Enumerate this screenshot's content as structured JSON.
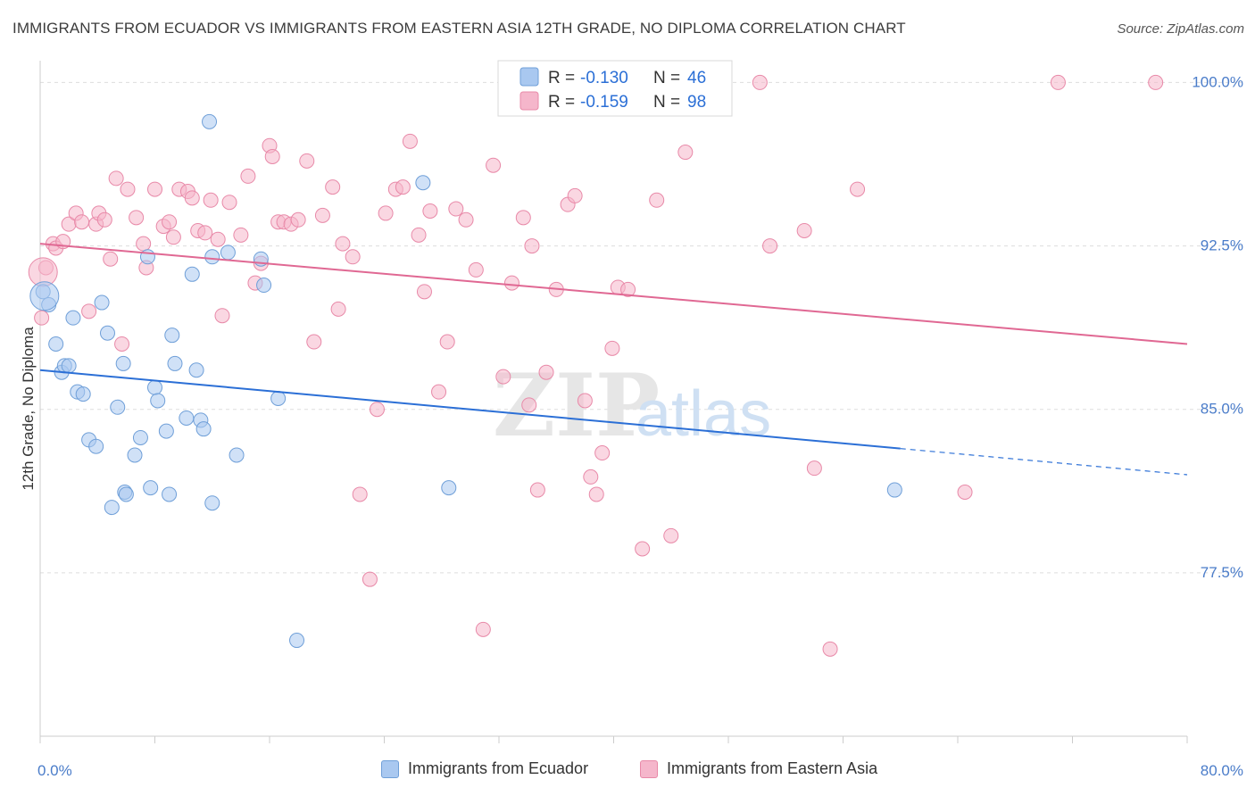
{
  "title": "IMMIGRANTS FROM ECUADOR VS IMMIGRANTS FROM EASTERN ASIA 12TH GRADE, NO DIPLOMA CORRELATION CHART",
  "source": "Source: ZipAtlas.com",
  "watermark": {
    "zip": "ZIP",
    "atlas": "atlas"
  },
  "legend_top": [
    {
      "r_label": "R =",
      "r_value": "-0.130",
      "n_label": "N =",
      "n_value": "46"
    },
    {
      "r_label": "R =",
      "r_value": "-0.159",
      "n_label": "N =",
      "n_value": "98"
    }
  ],
  "legend_bottom": [
    {
      "label": "Immigrants from Ecuador"
    },
    {
      "label": "Immigrants from Eastern Asia"
    }
  ],
  "colors": {
    "blue_fill": "#a9c8f0",
    "blue_stroke": "#6f9fd8",
    "blue_line": "#2b6fd6",
    "pink_fill": "#f5b6cb",
    "pink_stroke": "#e889a8",
    "pink_line": "#e06893",
    "tick_label": "#4a7cc9",
    "grid": "#dddddd"
  },
  "chart_data": {
    "type": "scatter",
    "title": "IMMIGRANTS FROM ECUADOR VS IMMIGRANTS FROM EASTERN ASIA 12TH GRADE, NO DIPLOMA CORRELATION CHART",
    "xlabel": "",
    "ylabel": "12th Grade, No Diploma",
    "xlim": [
      0,
      80
    ],
    "ylim": [
      70.0,
      101.0
    ],
    "x_tick_labels": [
      "0.0%",
      "80.0%"
    ],
    "y_ticks": [
      77.5,
      85.0,
      92.5,
      100.0
    ],
    "y_tick_labels": [
      "77.5%",
      "85.0%",
      "92.5%",
      "100.0%"
    ],
    "grid": true,
    "legend_position": "top-center",
    "series": [
      {
        "name": "Immigrants from Ecuador",
        "color": "#a9c8f0",
        "trend": {
          "x": [
            0,
            60
          ],
          "y": [
            86.8,
            83.2
          ],
          "dashed_to": [
            80,
            82.0
          ]
        },
        "points": [
          [
            0.2,
            90.4
          ],
          [
            0.6,
            89.8
          ],
          [
            1.1,
            88.0
          ],
          [
            1.5,
            86.7
          ],
          [
            1.7,
            87.0
          ],
          [
            2.0,
            87.0
          ],
          [
            2.3,
            89.2
          ],
          [
            2.6,
            85.8
          ],
          [
            3.0,
            85.7
          ],
          [
            3.4,
            83.6
          ],
          [
            3.9,
            83.3
          ],
          [
            4.3,
            89.9
          ],
          [
            4.7,
            88.5
          ],
          [
            5.0,
            80.5
          ],
          [
            5.4,
            85.1
          ],
          [
            5.9,
            81.2
          ],
          [
            6.0,
            81.1
          ],
          [
            6.6,
            82.9
          ],
          [
            5.8,
            87.1
          ],
          [
            7.0,
            83.7
          ],
          [
            7.5,
            92.0
          ],
          [
            7.7,
            81.4
          ],
          [
            8.0,
            86.0
          ],
          [
            8.2,
            85.4
          ],
          [
            8.8,
            84.0
          ],
          [
            9.2,
            88.4
          ],
          [
            9.4,
            87.1
          ],
          [
            9.0,
            81.1
          ],
          [
            10.2,
            84.6
          ],
          [
            10.6,
            91.2
          ],
          [
            10.9,
            86.8
          ],
          [
            11.2,
            84.5
          ],
          [
            11.4,
            84.1
          ],
          [
            11.8,
            98.2
          ],
          [
            12.0,
            92.0
          ],
          [
            12.0,
            80.7
          ],
          [
            13.1,
            92.2
          ],
          [
            13.7,
            82.9
          ],
          [
            15.4,
            91.9
          ],
          [
            15.6,
            90.7
          ],
          [
            16.6,
            85.5
          ],
          [
            17.9,
            74.4
          ],
          [
            26.7,
            95.4
          ],
          [
            28.5,
            81.4
          ],
          [
            59.6,
            81.3
          ],
          [
            0.3,
            90.2
          ]
        ]
      },
      {
        "name": "Immigrants from Eastern Asia",
        "color": "#f5b6cb",
        "trend": {
          "x": [
            0,
            80
          ],
          "y": [
            92.6,
            88.0
          ]
        },
        "points": [
          [
            0.1,
            89.2
          ],
          [
            0.4,
            91.5
          ],
          [
            0.9,
            92.6
          ],
          [
            1.1,
            92.4
          ],
          [
            1.6,
            92.7
          ],
          [
            2.0,
            93.5
          ],
          [
            2.5,
            94.0
          ],
          [
            2.9,
            93.6
          ],
          [
            3.4,
            89.5
          ],
          [
            3.9,
            93.5
          ],
          [
            4.1,
            94.0
          ],
          [
            4.5,
            93.7
          ],
          [
            4.9,
            91.9
          ],
          [
            5.3,
            95.6
          ],
          [
            5.7,
            88.0
          ],
          [
            6.1,
            95.1
          ],
          [
            6.7,
            93.8
          ],
          [
            7.2,
            92.6
          ],
          [
            7.4,
            91.5
          ],
          [
            8.0,
            95.1
          ],
          [
            8.6,
            93.4
          ],
          [
            9.0,
            93.6
          ],
          [
            9.3,
            92.9
          ],
          [
            9.7,
            95.1
          ],
          [
            10.3,
            95.0
          ],
          [
            10.6,
            94.7
          ],
          [
            11.0,
            93.2
          ],
          [
            11.5,
            93.1
          ],
          [
            11.9,
            94.6
          ],
          [
            12.4,
            92.8
          ],
          [
            12.7,
            89.3
          ],
          [
            13.2,
            94.5
          ],
          [
            14.0,
            93.0
          ],
          [
            14.5,
            95.7
          ],
          [
            15.0,
            90.8
          ],
          [
            15.4,
            91.7
          ],
          [
            16.0,
            97.1
          ],
          [
            16.2,
            96.6
          ],
          [
            16.6,
            93.6
          ],
          [
            17.0,
            93.6
          ],
          [
            17.5,
            93.5
          ],
          [
            18.0,
            93.7
          ],
          [
            18.6,
            96.4
          ],
          [
            19.1,
            88.1
          ],
          [
            19.7,
            93.9
          ],
          [
            20.4,
            95.2
          ],
          [
            20.8,
            89.6
          ],
          [
            21.1,
            92.6
          ],
          [
            21.8,
            92.0
          ],
          [
            22.3,
            81.1
          ],
          [
            23.0,
            77.2
          ],
          [
            23.5,
            85.0
          ],
          [
            24.1,
            94.0
          ],
          [
            24.8,
            95.1
          ],
          [
            25.3,
            95.2
          ],
          [
            25.8,
            97.3
          ],
          [
            26.4,
            93.0
          ],
          [
            26.8,
            90.4
          ],
          [
            27.2,
            94.1
          ],
          [
            27.8,
            85.8
          ],
          [
            28.4,
            88.1
          ],
          [
            29.0,
            94.2
          ],
          [
            29.7,
            93.7
          ],
          [
            30.4,
            91.4
          ],
          [
            30.9,
            74.9
          ],
          [
            31.6,
            96.2
          ],
          [
            32.3,
            86.5
          ],
          [
            32.9,
            90.8
          ],
          [
            33.7,
            93.8
          ],
          [
            34.1,
            85.2
          ],
          [
            34.3,
            92.5
          ],
          [
            34.7,
            81.3
          ],
          [
            35.3,
            86.7
          ],
          [
            36.0,
            90.5
          ],
          [
            36.8,
            94.4
          ],
          [
            37.3,
            94.8
          ],
          [
            38.0,
            85.4
          ],
          [
            38.4,
            81.9
          ],
          [
            38.8,
            81.1
          ],
          [
            39.2,
            83.0
          ],
          [
            39.9,
            87.8
          ],
          [
            40.3,
            90.6
          ],
          [
            41.0,
            90.5
          ],
          [
            42.0,
            78.6
          ],
          [
            43.0,
            94.6
          ],
          [
            44.0,
            79.2
          ],
          [
            45.0,
            96.8
          ],
          [
            45.5,
            100.0
          ],
          [
            50.2,
            100.0
          ],
          [
            50.9,
            92.5
          ],
          [
            53.3,
            93.2
          ],
          [
            54.0,
            82.3
          ],
          [
            55.1,
            74.0
          ],
          [
            57.0,
            95.1
          ],
          [
            64.5,
            81.2
          ],
          [
            71.0,
            100.0
          ],
          [
            77.8,
            100.0
          ],
          [
            0.2,
            91.3
          ]
        ]
      }
    ]
  }
}
